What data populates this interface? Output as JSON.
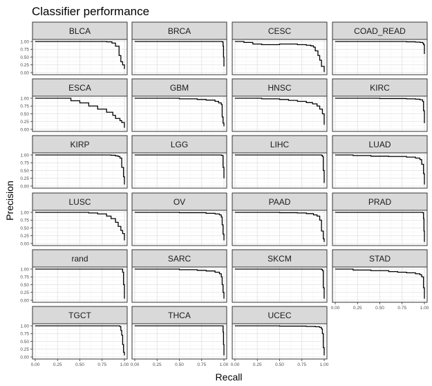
{
  "chart_data": {
    "type": "line",
    "title": "Classifier performance",
    "xlabel": "Recall",
    "ylabel": "Precision",
    "xlim": [
      0,
      1
    ],
    "ylim": [
      0,
      1
    ],
    "x_ticks": [
      "0.00",
      "0.25",
      "0.50",
      "0.75",
      "1.00"
    ],
    "y_ticks": [
      "0.00",
      "0.25",
      "0.50",
      "0.75",
      "1.00"
    ],
    "grid": true,
    "layout": "facet grid, 4 columns",
    "panels": [
      {
        "name": "BLCA",
        "x": [
          0,
          0.5,
          0.7,
          0.8,
          0.86,
          0.9,
          0.94,
          0.96,
          0.98,
          1.0
        ],
        "y": [
          1,
          1,
          1,
          0.99,
          0.95,
          0.85,
          0.55,
          0.35,
          0.25,
          0.12
        ]
      },
      {
        "name": "BRCA",
        "x": [
          0,
          0.5,
          0.9,
          0.98,
          0.99,
          0.995,
          1.0
        ],
        "y": [
          1,
          1,
          1,
          0.99,
          0.85,
          0.5,
          0.2
        ]
      },
      {
        "name": "CESC",
        "x": [
          0,
          0.1,
          0.2,
          0.3,
          0.5,
          0.7,
          0.8,
          0.85,
          0.88,
          0.9,
          0.93,
          0.95,
          0.97,
          1.0
        ],
        "y": [
          1,
          0.97,
          0.92,
          0.9,
          0.92,
          0.9,
          0.88,
          0.86,
          0.82,
          0.7,
          0.55,
          0.4,
          0.2,
          0.02
        ]
      },
      {
        "name": "COAD_READ",
        "x": [
          0,
          0.5,
          0.8,
          0.9,
          0.95,
          0.98,
          0.99,
          1.0
        ],
        "y": [
          1,
          1,
          0.99,
          0.98,
          0.97,
          0.95,
          0.9,
          0.6
        ]
      },
      {
        "name": "ESCA",
        "x": [
          0,
          0.2,
          0.4,
          0.5,
          0.6,
          0.7,
          0.8,
          0.87,
          0.9,
          0.95,
          0.97,
          1.0
        ],
        "y": [
          1,
          1,
          0.92,
          0.85,
          0.75,
          0.65,
          0.55,
          0.45,
          0.35,
          0.28,
          0.22,
          0.05
        ]
      },
      {
        "name": "GBM",
        "x": [
          0,
          0.5,
          0.7,
          0.8,
          0.9,
          0.94,
          0.97,
          0.98,
          0.99,
          1.0
        ],
        "y": [
          1,
          0.98,
          0.96,
          0.94,
          0.9,
          0.85,
          0.8,
          0.4,
          0.2,
          0.1
        ]
      },
      {
        "name": "HNSC",
        "x": [
          0,
          0.3,
          0.5,
          0.6,
          0.7,
          0.8,
          0.87,
          0.92,
          0.95,
          0.98,
          1.0
        ],
        "y": [
          1,
          0.98,
          0.96,
          0.93,
          0.9,
          0.86,
          0.82,
          0.75,
          0.65,
          0.5,
          0.15
        ]
      },
      {
        "name": "KIRC",
        "x": [
          0,
          0.5,
          0.8,
          0.9,
          0.95,
          0.98,
          0.99,
          1.0
        ],
        "y": [
          1,
          0.99,
          0.98,
          0.97,
          0.95,
          0.9,
          0.6,
          0.2
        ]
      },
      {
        "name": "KIRP",
        "x": [
          0,
          0.5,
          0.8,
          0.85,
          0.9,
          0.93,
          0.95,
          0.97,
          0.99,
          1.0
        ],
        "y": [
          1,
          1,
          1,
          0.99,
          0.97,
          0.95,
          0.9,
          0.6,
          0.3,
          0.05
        ]
      },
      {
        "name": "LGG",
        "x": [
          0,
          0.5,
          0.95,
          0.97,
          0.98,
          0.99,
          1.0
        ],
        "y": [
          1,
          1,
          1,
          0.99,
          0.98,
          0.6,
          0.25
        ]
      },
      {
        "name": "LIHC",
        "x": [
          0,
          0.5,
          0.95,
          0.97,
          0.98,
          0.99,
          1.0
        ],
        "y": [
          1,
          1,
          1,
          0.99,
          0.95,
          0.5,
          0.1
        ]
      },
      {
        "name": "LUAD",
        "x": [
          0,
          0.2,
          0.4,
          0.6,
          0.8,
          0.9,
          0.95,
          0.97,
          0.99,
          1.0
        ],
        "y": [
          1,
          0.98,
          0.96,
          0.95,
          0.93,
          0.9,
          0.85,
          0.7,
          0.4,
          0.05
        ]
      },
      {
        "name": "LUSC",
        "x": [
          0,
          0.4,
          0.6,
          0.7,
          0.8,
          0.85,
          0.9,
          0.93,
          0.96,
          0.98,
          1.0
        ],
        "y": [
          1,
          1,
          0.98,
          0.95,
          0.88,
          0.8,
          0.68,
          0.55,
          0.42,
          0.32,
          0.1
        ]
      },
      {
        "name": "OV",
        "x": [
          0,
          0.5,
          0.8,
          0.9,
          0.95,
          0.97,
          0.98,
          0.99,
          1.0
        ],
        "y": [
          1,
          0.99,
          0.97,
          0.95,
          0.92,
          0.85,
          0.6,
          0.3,
          0.1
        ]
      },
      {
        "name": "PAAD",
        "x": [
          0,
          0.5,
          0.7,
          0.8,
          0.88,
          0.92,
          0.95,
          0.97,
          0.99,
          1.0
        ],
        "y": [
          1,
          0.99,
          0.98,
          0.96,
          0.92,
          0.88,
          0.75,
          0.4,
          0.15,
          0.05
        ]
      },
      {
        "name": "PRAD",
        "x": [
          0,
          0.5,
          0.95,
          0.98,
          0.99,
          0.995,
          1.0
        ],
        "y": [
          1,
          1,
          1,
          0.99,
          0.8,
          0.4,
          0.05
        ]
      },
      {
        "name": "rand",
        "x": [
          0,
          0.5,
          0.95,
          0.97,
          0.98,
          0.99,
          1.0
        ],
        "y": [
          1,
          1,
          1,
          1,
          0.9,
          0.5,
          0.05
        ]
      },
      {
        "name": "SARC",
        "x": [
          0,
          0.5,
          0.7,
          0.8,
          0.9,
          0.95,
          0.97,
          0.98,
          0.99,
          1.0
        ],
        "y": [
          1,
          0.98,
          0.96,
          0.94,
          0.9,
          0.85,
          0.75,
          0.5,
          0.25,
          0.05
        ]
      },
      {
        "name": "SKCM",
        "x": [
          0,
          0.5,
          0.95,
          0.97,
          0.98,
          0.99,
          1.0
        ],
        "y": [
          1,
          1,
          1,
          0.99,
          0.95,
          0.4,
          0.05
        ]
      },
      {
        "name": "STAD",
        "x": [
          0,
          0.2,
          0.4,
          0.6,
          0.7,
          0.8,
          0.9,
          0.95,
          0.97,
          0.99,
          1.0
        ],
        "y": [
          1,
          0.97,
          0.95,
          0.92,
          0.9,
          0.88,
          0.85,
          0.82,
          0.75,
          0.4,
          0.05
        ]
      },
      {
        "name": "TGCT",
        "x": [
          0,
          0.5,
          0.9,
          0.95,
          0.96,
          0.97,
          0.98,
          0.99,
          1.0
        ],
        "y": [
          1,
          1,
          1,
          0.97,
          0.85,
          0.7,
          0.4,
          0.15,
          0.05
        ]
      },
      {
        "name": "THCA",
        "x": [
          0,
          0.5,
          0.95,
          0.98,
          0.99,
          0.995,
          1.0
        ],
        "y": [
          1,
          1,
          1,
          1,
          0.8,
          0.4,
          0.05
        ]
      },
      {
        "name": "UCEC",
        "x": [
          0,
          0.5,
          0.8,
          0.9,
          0.95,
          0.97,
          0.98,
          0.99,
          1.0
        ],
        "y": [
          1,
          0.99,
          0.98,
          0.97,
          0.95,
          0.9,
          0.75,
          0.3,
          0.05
        ]
      }
    ]
  }
}
